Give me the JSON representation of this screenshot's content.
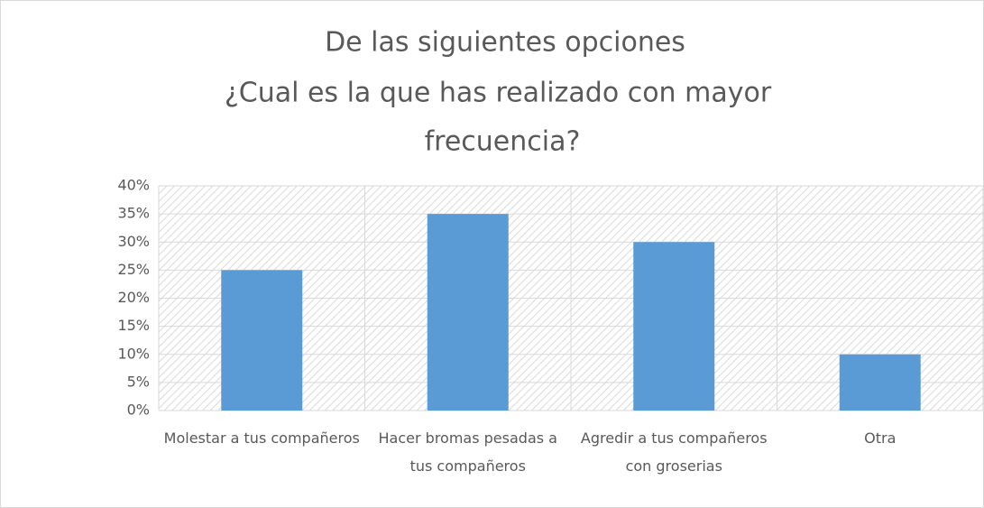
{
  "chart_data": {
    "type": "bar",
    "title": [
      "De las siguientes opciones",
      "¿Cual es la que has realizado con mayor",
      "frecuencia?"
    ],
    "categories": [
      "Molestar a tus compañeros",
      "Hacer bromas pesadas a tus compañeros",
      "Agredir a tus compañeros con groserias",
      "Otra"
    ],
    "values": [
      25,
      35,
      30,
      10
    ],
    "color": "#5b9bd5",
    "ylim": [
      0,
      40
    ],
    "yticks": [
      {
        "value": 0,
        "label": "0%"
      },
      {
        "value": 5,
        "label": "5%"
      },
      {
        "value": 10,
        "label": "10%"
      },
      {
        "value": 15,
        "label": "15%"
      },
      {
        "value": 20,
        "label": "20%"
      },
      {
        "value": 25,
        "label": "25%"
      },
      {
        "value": 30,
        "label": "30%"
      },
      {
        "value": 35,
        "label": "35%"
      },
      {
        "value": 40,
        "label": "40%"
      }
    ],
    "grid": true
  }
}
